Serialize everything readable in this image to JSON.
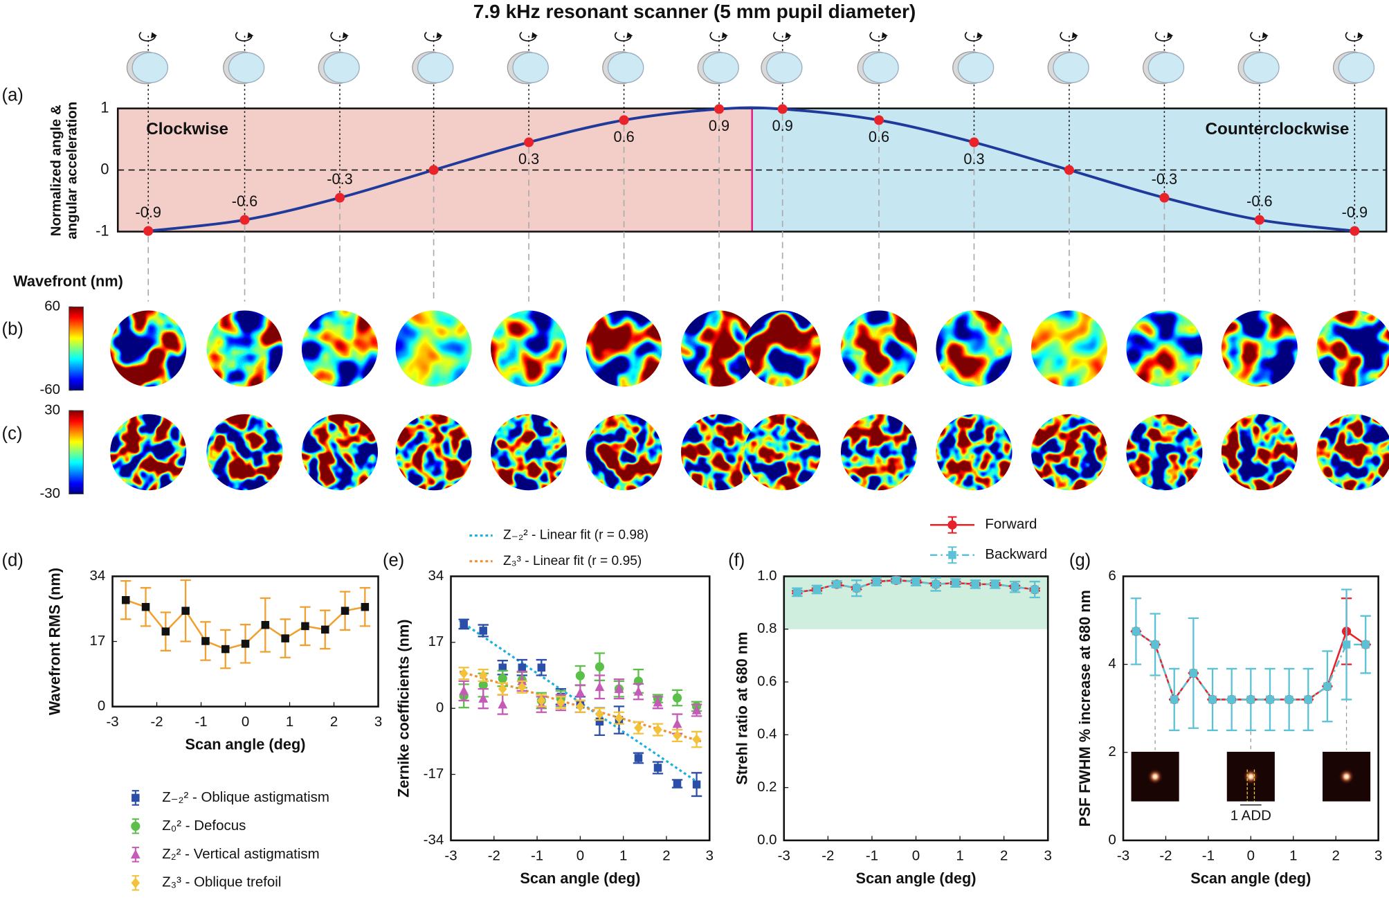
{
  "chart_data": [
    {
      "type": "line",
      "panel": "(a)",
      "title": "7.9 kHz resonant scanner (5 mm pupil diameter)",
      "y_label": [
        "Normalized angle &",
        "angular acceleration"
      ],
      "x": [
        0.024,
        0.1,
        0.175,
        0.249,
        0.324,
        0.399,
        0.474,
        0.524,
        0.6,
        0.675,
        0.75,
        0.825,
        0.9,
        0.975
      ],
      "values": [
        -0.99,
        -0.81,
        -0.45,
        0,
        0.45,
        0.81,
        0.99,
        0.99,
        0.81,
        0.45,
        0,
        -0.45,
        -0.81,
        -0.99
      ],
      "point_labels": [
        -0.9,
        -0.6,
        -0.3,
        null,
        0.3,
        0.6,
        0.9,
        0.9,
        0.6,
        0.3,
        null,
        -0.3,
        -0.6,
        -0.9
      ],
      "color": "#1f3a9a",
      "marker_color": "#e8242a",
      "xlim": [
        0,
        1
      ],
      "ylim": [
        -1,
        1
      ],
      "yticks": [
        -1,
        0,
        1
      ],
      "zero_line": true,
      "regions": [
        {
          "label": "Clockwise",
          "from": 0,
          "to": 0.5,
          "color": "#f3cec8"
        },
        {
          "label": "Counterclockwise",
          "from": 0.5,
          "to": 1,
          "color": "#c6e6f2"
        }
      ],
      "divider": 0.5,
      "divider_color": "#e0218a"
    },
    {
      "type": "wavefront",
      "panel": "(b)",
      "label": "Wavefront (nm)",
      "clim": [
        -60,
        60
      ],
      "cticks": [
        -60,
        60
      ]
    },
    {
      "type": "wavefront",
      "panel": "(c)",
      "clim": [
        -30,
        30
      ],
      "cticks": [
        -30,
        30
      ]
    },
    {
      "type": "errorbar",
      "panel": "(d)",
      "xlabel": "Scan angle (deg)",
      "ylabel": "Wavefront RMS (nm)",
      "x": [
        -2.7,
        -2.25,
        -1.8,
        -1.35,
        -0.9,
        -0.45,
        0,
        0.45,
        0.9,
        1.35,
        1.8,
        2.25,
        2.7
      ],
      "series": [
        {
          "color": "#f0a030",
          "marker": "square",
          "marker_color": "#111",
          "values": [
            27.8,
            26,
            19.6,
            25,
            17.1,
            15,
            16.4,
            21.3,
            17.8,
            21,
            20.1,
            25,
            26
          ],
          "errors": [
            5,
            5,
            5,
            8,
            5,
            5,
            5,
            7,
            5,
            5,
            5,
            5,
            5
          ]
        }
      ],
      "xlim": [
        -3,
        3
      ],
      "xticks": [
        -3,
        -2,
        -1,
        0,
        1,
        2,
        3
      ],
      "ylim": [
        0,
        34
      ],
      "yticks": [
        0,
        17,
        34
      ]
    },
    {
      "type": "errorbar",
      "panel": "(e)",
      "xlabel": "Scan angle (deg)",
      "ylabel": "Zernike coefficients (nm)",
      "lines": false,
      "x": [
        -2.7,
        -2.25,
        -1.8,
        -1.35,
        -0.9,
        -0.45,
        0,
        0.45,
        0.9,
        1.35,
        1.8,
        2.25,
        2.7
      ],
      "series": [
        {
          "name": "Z₋₂² - Oblique astigmatism",
          "color": "#2b4fa8",
          "marker": "square",
          "values": [
            21.7,
            20,
            10.5,
            10.5,
            10.5,
            3,
            1,
            -3.4,
            -3,
            -12.8,
            -15.3,
            -19.4,
            -19.6
          ],
          "errors": [
            1.2,
            1.5,
            1.8,
            2,
            2,
            2,
            2,
            3.5,
            3.5,
            1.3,
            1.5,
            1,
            3
          ]
        },
        {
          "name": "Z₀² - Defocus",
          "color": "#5cbf4a",
          "marker": "circle",
          "values": [
            3.2,
            6,
            7.7,
            7.3,
            2,
            2.5,
            8.4,
            10.7,
            5,
            7,
            2.5,
            2.7,
            0.5
          ],
          "errors": [
            3,
            3,
            2,
            2,
            2,
            2,
            2.5,
            3.5,
            2,
            3,
            1,
            2,
            1.2
          ]
        },
        {
          "name": "Z₂² - Vertical astigmatism",
          "color": "#c55ab8",
          "marker": "triangle",
          "values": [
            4.5,
            2.5,
            1,
            7,
            1,
            1.5,
            4,
            5.5,
            5,
            4.3,
            1.5,
            -4,
            -0.5
          ],
          "errors": [
            2.5,
            2.5,
            2.5,
            2.5,
            2,
            2,
            2,
            3,
            2.5,
            2,
            1.5,
            2.5,
            1.5
          ]
        },
        {
          "name": "Z₃³ - Oblique trefoil",
          "color": "#f2c23a",
          "marker": "diamond",
          "values": [
            9,
            8.5,
            5,
            5.5,
            2,
            1.5,
            0.5,
            -1.5,
            -2.5,
            -5,
            -5.5,
            -7,
            -8
          ],
          "errors": [
            1.5,
            1.5,
            1.5,
            1.5,
            1.5,
            1.5,
            1.5,
            1.5,
            1.5,
            1.5,
            1.5,
            1.5,
            2
          ]
        }
      ],
      "fits": [
        {
          "name": "Z₋₂² - Linear fit (r = 0.98)",
          "color": "#1ab0e0",
          "x": [
            -2.8,
            2.8
          ],
          "values": [
            22.6,
            -19.6
          ]
        },
        {
          "name": "Z₃³ - Linear fit (r = 0.95)",
          "color": "#f09030",
          "x": [
            -2.8,
            2.8
          ],
          "values": [
            9.5,
            -8.5
          ]
        }
      ],
      "legend": "outside-bottom-left",
      "fit_legend": "top",
      "xlim": [
        -3,
        3
      ],
      "xticks": [
        -3,
        -2,
        -1,
        0,
        1,
        2,
        3
      ],
      "ylim": [
        -34,
        34
      ],
      "yticks": [
        -34,
        -17,
        0,
        17,
        34
      ]
    },
    {
      "type": "errorbar",
      "panel": "(f)",
      "xlabel": "Scan angle (deg)",
      "ylabel": "Strehl ratio at 680 nm",
      "x": [
        -2.7,
        -2.25,
        -1.8,
        -1.35,
        -0.9,
        -0.45,
        0,
        0.45,
        0.9,
        1.35,
        1.8,
        2.25,
        2.7
      ],
      "series": [
        {
          "name": "Forward",
          "color": "#e8202a",
          "marker": "circle",
          "dash": "solid",
          "values": [
            0.94,
            0.95,
            0.97,
            0.955,
            0.98,
            0.985,
            0.98,
            0.97,
            0.975,
            0.97,
            0.97,
            0.96,
            0.95
          ],
          "errors": [
            0.005,
            0.005,
            0.005,
            0.005,
            0.005,
            0.005,
            0.005,
            0.005,
            0.005,
            0.005,
            0.005,
            0.005,
            0.005
          ]
        },
        {
          "name": "Backward",
          "color": "#5bc2d6",
          "marker": "square",
          "dash": "dashdot",
          "values": [
            0.94,
            0.95,
            0.97,
            0.955,
            0.98,
            0.985,
            0.98,
            0.97,
            0.975,
            0.97,
            0.97,
            0.96,
            0.95
          ],
          "errors": [
            0.015,
            0.015,
            0.012,
            0.03,
            0.015,
            0.01,
            0.015,
            0.025,
            0.015,
            0.015,
            0.015,
            0.02,
            0.03
          ]
        }
      ],
      "band": [
        0.8,
        1
      ],
      "band_color": "#cfeedd",
      "legend": "top",
      "xlim": [
        -3,
        3
      ],
      "xticks": [
        -3,
        -2,
        -1,
        0,
        1,
        2,
        3
      ],
      "ylim": [
        0,
        1
      ],
      "yticks": [
        {
          "value": 0,
          "label": "0.0"
        },
        {
          "value": 0.2,
          "label": "0.2"
        },
        {
          "value": 0.4,
          "label": "0.4"
        },
        {
          "value": 0.6,
          "label": "0.6"
        },
        {
          "value": 0.8,
          "label": "0.8"
        },
        {
          "value": 1,
          "label": "1.0"
        }
      ]
    },
    {
      "type": "errorbar",
      "panel": "(g)",
      "xlabel": "Scan angle (deg)",
      "ylabel": "PSF FWHM % increase at 680 nm",
      "x": [
        -2.7,
        -2.25,
        -1.8,
        -1.35,
        -0.9,
        -0.45,
        0,
        0.45,
        0.9,
        1.35,
        1.8,
        2.25,
        2.7
      ],
      "series": [
        {
          "name": "Forward",
          "color": "#e8202a",
          "marker": "circle",
          "dash": "solid",
          "values": [
            4.75,
            4.45,
            3.2,
            3.8,
            3.2,
            3.2,
            3.2,
            3.2,
            3.2,
            3.2,
            3.5,
            4.75,
            4.45
          ],
          "errors": [
            0,
            0,
            0,
            0,
            0,
            0,
            0,
            0,
            0,
            0,
            0,
            0.75,
            0
          ]
        },
        {
          "name": "Backward",
          "color": "#5bc2d6",
          "marker": "square",
          "dash": "dashdot",
          "values": [
            4.75,
            4.45,
            3.2,
            3.8,
            3.2,
            3.2,
            3.2,
            3.2,
            3.2,
            3.2,
            3.5,
            4.45,
            4.45
          ],
          "errors": [
            0.75,
            0.7,
            0.7,
            1.25,
            0.7,
            0.7,
            0.7,
            0.7,
            0.7,
            0.7,
            0.8,
            1.25,
            0.65
          ]
        }
      ],
      "inset_label": "1 ADD",
      "xlim": [
        -3,
        3
      ],
      "xticks": [
        -3,
        -2,
        -1,
        0,
        1,
        2,
        3
      ],
      "ylim": [
        0,
        6
      ],
      "yticks": [
        0,
        2,
        4,
        6
      ]
    }
  ]
}
